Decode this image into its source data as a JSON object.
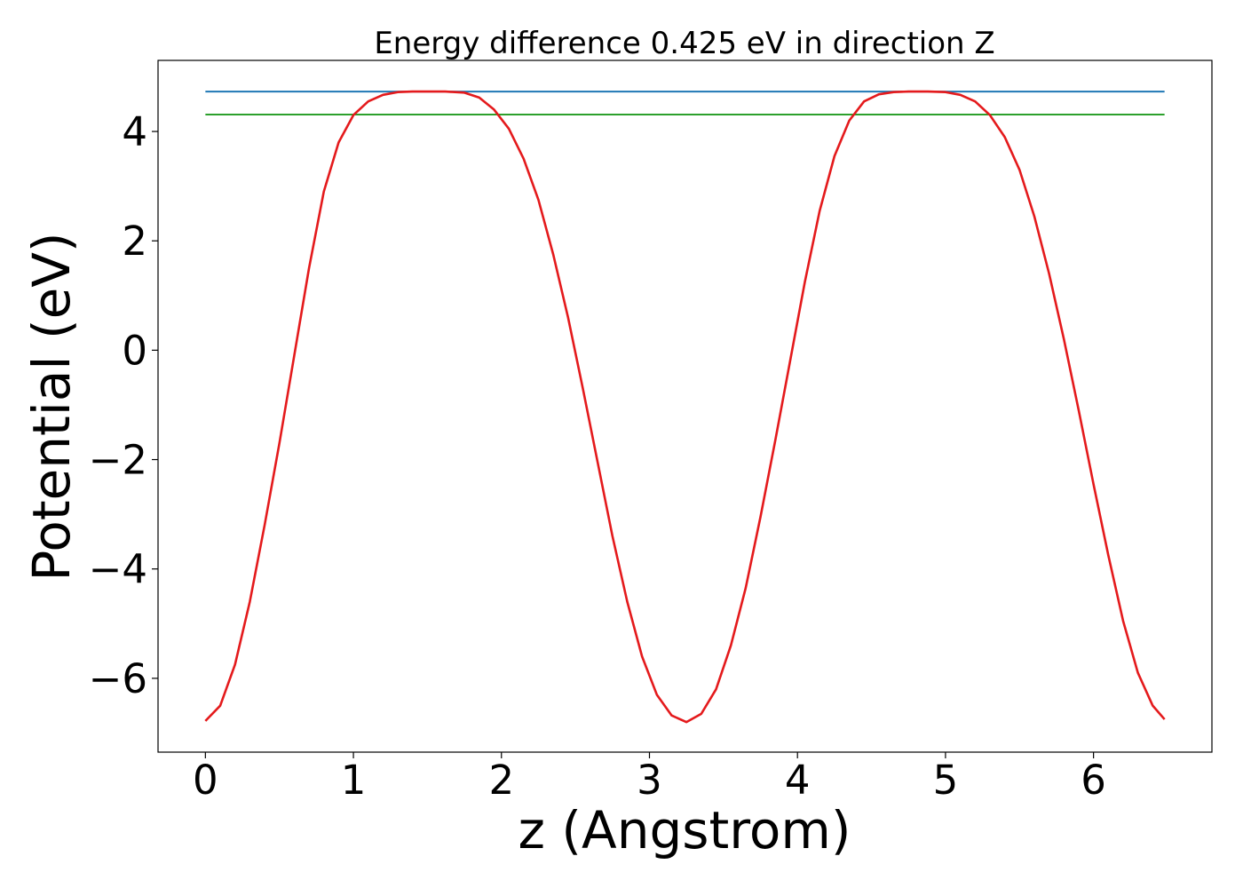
{
  "chart_data": {
    "type": "line",
    "title": "Energy difference 0.425 eV in direction Z",
    "xlabel": "z (Angstrom)",
    "ylabel": "Potential (eV)",
    "xlim": [
      -0.32,
      6.8
    ],
    "ylim": [
      -7.35,
      5.3
    ],
    "xticks": [
      0,
      1,
      2,
      3,
      4,
      5,
      6
    ],
    "xtick_labels": [
      "0",
      "1",
      "2",
      "3",
      "4",
      "5",
      "6"
    ],
    "yticks": [
      -6,
      -4,
      -2,
      0,
      2,
      4
    ],
    "ytick_labels": [
      "−6",
      "−4",
      "−2",
      "0",
      "2",
      "4"
    ],
    "grid": false,
    "series": [
      {
        "color": "#1f77b4",
        "x": [
          0,
          6.48
        ],
        "y": [
          4.73,
          4.73
        ]
      },
      {
        "color": "#2ca02c",
        "x": [
          0,
          6.48
        ],
        "y": [
          4.31,
          4.31
        ]
      },
      {
        "color": "#e41a1c",
        "x": [
          0,
          0.1,
          0.2,
          0.3,
          0.4,
          0.5,
          0.6,
          0.7,
          0.8,
          0.9,
          1.0,
          1.1,
          1.2,
          1.3,
          1.4,
          1.5,
          1.62,
          1.75,
          1.85,
          1.95,
          2.05,
          2.15,
          2.25,
          2.35,
          2.45,
          2.55,
          2.65,
          2.75,
          2.85,
          2.95,
          3.05,
          3.15,
          3.25,
          3.35,
          3.45,
          3.55,
          3.65,
          3.75,
          3.85,
          3.95,
          4.05,
          4.15,
          4.25,
          4.35,
          4.45,
          4.55,
          4.65,
          4.75,
          4.88,
          5.0,
          5.1,
          5.2,
          5.3,
          5.4,
          5.5,
          5.6,
          5.7,
          5.8,
          5.9,
          6.0,
          6.1,
          6.2,
          6.3,
          6.4,
          6.48
        ],
        "y": [
          -6.78,
          -6.5,
          -5.75,
          -4.6,
          -3.2,
          -1.7,
          -0.1,
          1.5,
          2.9,
          3.8,
          4.3,
          4.55,
          4.67,
          4.72,
          4.73,
          4.73,
          4.73,
          4.71,
          4.62,
          4.4,
          4.05,
          3.5,
          2.75,
          1.75,
          0.6,
          -0.7,
          -2.05,
          -3.4,
          -4.6,
          -5.6,
          -6.3,
          -6.68,
          -6.8,
          -6.65,
          -6.2,
          -5.4,
          -4.35,
          -3.05,
          -1.65,
          -0.2,
          1.25,
          2.55,
          3.55,
          4.2,
          4.55,
          4.68,
          4.72,
          4.73,
          4.73,
          4.72,
          4.67,
          4.55,
          4.3,
          3.9,
          3.3,
          2.45,
          1.4,
          0.2,
          -1.1,
          -2.45,
          -3.75,
          -4.95,
          -5.9,
          -6.5,
          -6.75
        ]
      }
    ]
  }
}
